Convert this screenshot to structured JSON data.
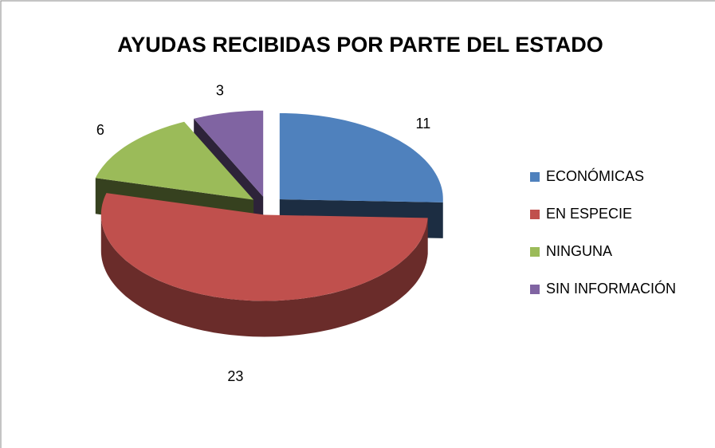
{
  "chart_data": {
    "type": "pie3d",
    "title": "AYUDAS RECIBIDAS POR PARTE DEL ESTADO",
    "categories": [
      "ECONÓMICAS",
      "EN ESPECIE",
      "NINGUNA",
      "SIN INFORMACIÓN"
    ],
    "values": [
      11,
      23,
      6,
      3
    ],
    "colors": [
      "#4f81bd",
      "#c0504d",
      "#9bbb59",
      "#8064a2"
    ],
    "legend": "right"
  }
}
